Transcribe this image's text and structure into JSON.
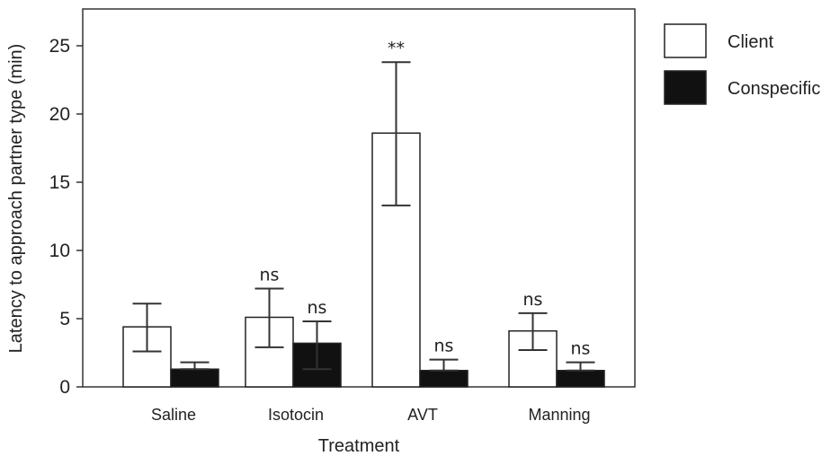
{
  "chart_data": {
    "type": "bar",
    "title": "",
    "xlabel": "Treatment",
    "ylabel": "Latency to approach partner type (min)",
    "ylim": [
      0,
      27.5
    ],
    "yticks": [
      0,
      5,
      10,
      15,
      20,
      25
    ],
    "categories": [
      "Saline",
      "Isotocin",
      "AVT",
      "Manning"
    ],
    "series": [
      {
        "name": "Client",
        "fill": "#ffffff",
        "values": [
          4.4,
          5.1,
          18.6,
          4.1
        ],
        "err_low": [
          2.6,
          2.9,
          13.3,
          2.7
        ],
        "err_high": [
          6.1,
          7.2,
          23.8,
          5.4
        ],
        "annotations": [
          "",
          "ns",
          "**",
          "ns"
        ]
      },
      {
        "name": "Conspecific",
        "fill": "#111111",
        "values": [
          1.3,
          3.2,
          1.2,
          1.2
        ],
        "err_low": [
          1.3,
          1.3,
          1.2,
          1.2
        ],
        "err_high": [
          1.8,
          4.8,
          2.0,
          1.8
        ],
        "annotations": [
          "",
          "ns",
          "ns",
          "ns"
        ]
      }
    ],
    "legend_position": "outside-right",
    "grid": false
  }
}
